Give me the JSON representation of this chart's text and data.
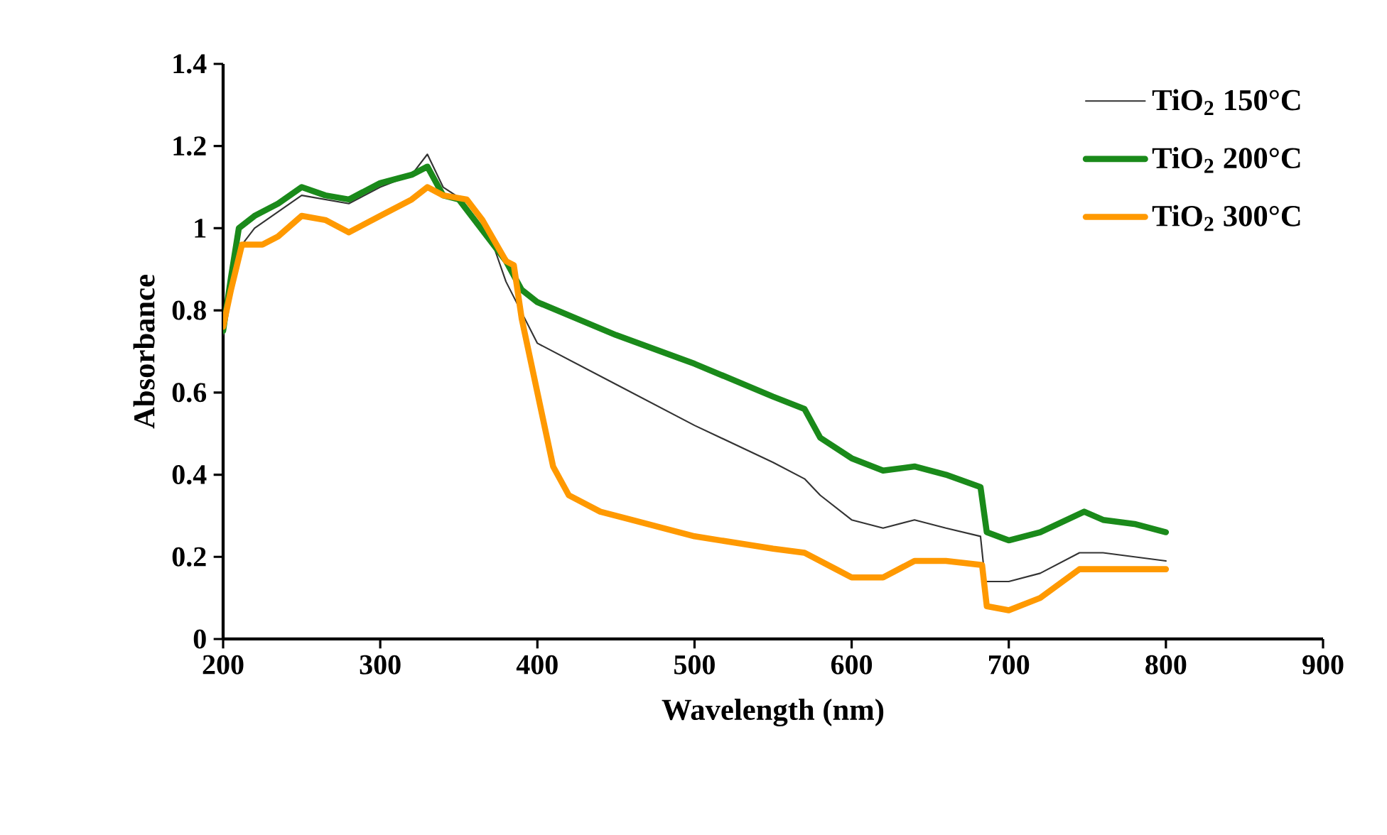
{
  "chart_data": {
    "type": "line",
    "xlabel": "Wavelength (nm)",
    "ylabel": "Absorbance",
    "xlim": [
      200,
      900
    ],
    "xticks": [
      200,
      300,
      400,
      500,
      600,
      700,
      800,
      900
    ],
    "ylim": [
      0,
      1.4
    ],
    "yticks": [
      0,
      0.2,
      0.4,
      0.6,
      0.8,
      1,
      1.2,
      1.4
    ],
    "grid": false,
    "legend": "top right",
    "marker": "none",
    "series": [
      {
        "name": "TiO$_{2}$ 150°C",
        "color": "#333333",
        "x": [
          200,
          210,
          220,
          250,
          280,
          300,
          320,
          330,
          340,
          360,
          370,
          380,
          400,
          450,
          500,
          550,
          570,
          580,
          600,
          620,
          640,
          660,
          682,
          685,
          700,
          720,
          745,
          760,
          800
        ],
        "values": [
          0.74,
          0.95,
          1.0,
          1.08,
          1.06,
          1.1,
          1.13,
          1.18,
          1.1,
          1.05,
          0.98,
          0.87,
          0.72,
          0.62,
          0.52,
          0.43,
          0.39,
          0.35,
          0.29,
          0.27,
          0.29,
          0.27,
          0.25,
          0.14,
          0.14,
          0.16,
          0.21,
          0.21,
          0.19
        ]
      },
      {
        "name": "TiO$_{2}$ 200°C",
        "color": "#1a8a1a",
        "x": [
          200,
          205,
          210,
          220,
          235,
          250,
          265,
          280,
          300,
          320,
          330,
          340,
          350,
          360,
          380,
          390,
          400,
          450,
          500,
          550,
          570,
          580,
          600,
          620,
          640,
          660,
          682,
          686,
          700,
          720,
          748,
          760,
          780,
          800
        ],
        "values": [
          0.75,
          0.88,
          1.0,
          1.03,
          1.06,
          1.1,
          1.08,
          1.07,
          1.11,
          1.13,
          1.15,
          1.08,
          1.07,
          1.02,
          0.92,
          0.85,
          0.82,
          0.74,
          0.67,
          0.59,
          0.56,
          0.49,
          0.44,
          0.41,
          0.42,
          0.4,
          0.37,
          0.26,
          0.24,
          0.26,
          0.31,
          0.29,
          0.28,
          0.26
        ]
      },
      {
        "name": "TiO$_{2}$ 300°C",
        "color": "#ff9900",
        "x": [
          200,
          205,
          212,
          225,
          235,
          250,
          265,
          280,
          300,
          320,
          330,
          340,
          355,
          365,
          380,
          385,
          390,
          400,
          410,
          420,
          440,
          460,
          500,
          550,
          570,
          590,
          600,
          620,
          640,
          660,
          683,
          686,
          700,
          720,
          745,
          760,
          800
        ],
        "values": [
          0.76,
          0.85,
          0.96,
          0.96,
          0.98,
          1.03,
          1.02,
          0.99,
          1.03,
          1.07,
          1.1,
          1.08,
          1.07,
          1.02,
          0.92,
          0.91,
          0.78,
          0.6,
          0.42,
          0.35,
          0.31,
          0.29,
          0.25,
          0.22,
          0.21,
          0.17,
          0.15,
          0.15,
          0.19,
          0.19,
          0.18,
          0.08,
          0.07,
          0.1,
          0.17,
          0.17,
          0.17
        ]
      }
    ]
  }
}
